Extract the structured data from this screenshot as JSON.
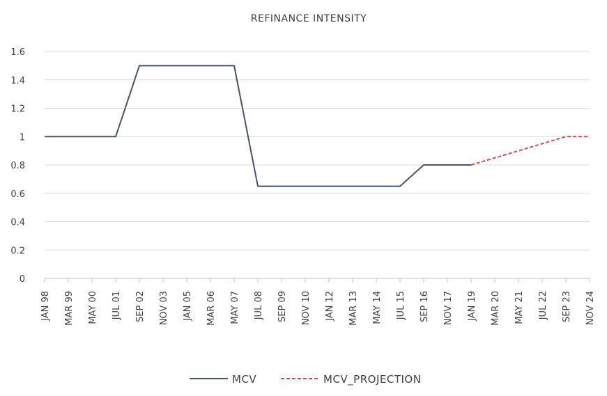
{
  "chart_data": {
    "type": "line",
    "title": "REFINANCE INTENSITY",
    "xlabel": "",
    "ylabel": "",
    "ylim": [
      0,
      1.6
    ],
    "yticks": [
      "0",
      "0.2",
      "0.4",
      "0.6",
      "0.8",
      "1",
      "1.2",
      "1.4",
      "1.6"
    ],
    "grid": true,
    "legend_position": "bottom",
    "categories": [
      "JAN 98",
      "MAR 99",
      "MAY 00",
      "JUL 01",
      "SEP 02",
      "NOV 03",
      "JAN 05",
      "MAR 06",
      "MAY 07",
      "JUL 08",
      "SEP 09",
      "NOV 10",
      "JAN 12",
      "MAR 13",
      "MAY 14",
      "JUL 15",
      "SEP 16",
      "NOV 17",
      "JAN 19",
      "MAR 20",
      "MAY 21",
      "JUL 22",
      "SEP 23",
      "NOV 24"
    ],
    "series": [
      {
        "name": "MCV",
        "color": "#44546A",
        "dash": "solid",
        "points": [
          [
            "JAN 98",
            1
          ],
          [
            "JUL 01",
            1
          ],
          [
            "SEP 02",
            1.5
          ],
          [
            "MAY 07",
            1.5
          ],
          [
            "JUL 08",
            0.65
          ],
          [
            "JUL 15",
            0.65
          ],
          [
            "SEP 16",
            0.8
          ],
          [
            "JAN 19",
            0.8
          ]
        ]
      },
      {
        "name": "MCV_PROJECTION",
        "color": "#D34B4B",
        "dash": "dashed",
        "points": [
          [
            "JAN 19",
            0.8
          ],
          [
            "SEP 23",
            1
          ],
          [
            "NOV 24",
            1
          ]
        ]
      }
    ]
  }
}
